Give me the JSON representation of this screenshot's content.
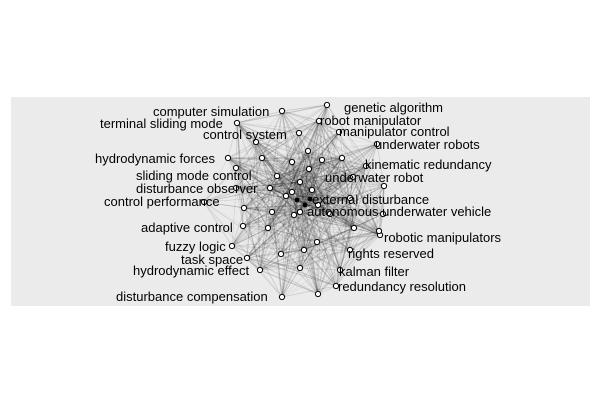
{
  "diagram": {
    "type": "network",
    "colors": {
      "panel_background": "#ebebeb",
      "edge": "#000000",
      "node_fill": "#ffffff",
      "node_stroke": "#000000",
      "label": "#000000"
    },
    "labels": [
      "computer simulation",
      "genetic algorithm",
      "terminal sliding mode",
      "robot manipulator",
      "control system",
      "manipulator control",
      "underwater robots",
      "hydrodynamic forces",
      "kinematic redundancy",
      "sliding mode control",
      "underwater robot",
      "disturbance observer",
      "control performance",
      "external disturbance",
      "autonomous underwater vehicle",
      "adaptive control",
      "robotic manipulators",
      "fuzzy logic",
      "rights reserved",
      "task space",
      "hydrodynamic effect",
      "kalman filter",
      "redundancy resolution",
      "disturbance compensation"
    ]
  }
}
